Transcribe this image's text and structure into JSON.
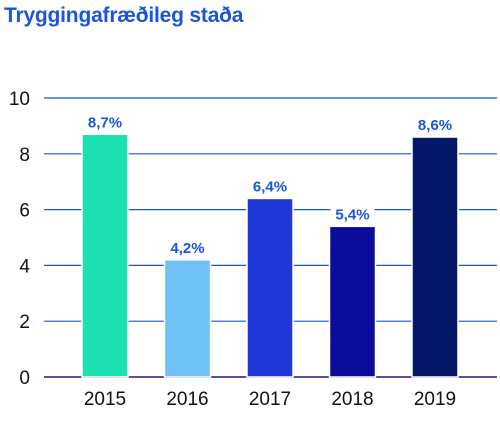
{
  "title": "Tryggingafræðileg staða",
  "chart_data": {
    "type": "bar",
    "categories": [
      "2015",
      "2016",
      "2017",
      "2018",
      "2019"
    ],
    "values": [
      8.7,
      4.2,
      6.4,
      5.4,
      8.6
    ],
    "data_labels": [
      "8,7%",
      "4,2%",
      "6,4%",
      "5,4%",
      "8,6%"
    ],
    "colors": [
      "#1de0b0",
      "#6ec0f5",
      "#2138d8",
      "#0b0d9a",
      "#051766"
    ],
    "title": "Tryggingafræðileg staða",
    "xlabel": "",
    "ylabel": "",
    "ylim": [
      0,
      10
    ],
    "yticks": [
      0,
      2,
      4,
      6,
      8,
      10
    ],
    "grid": true,
    "grid_color": "#1a56d6",
    "legend": "none"
  }
}
